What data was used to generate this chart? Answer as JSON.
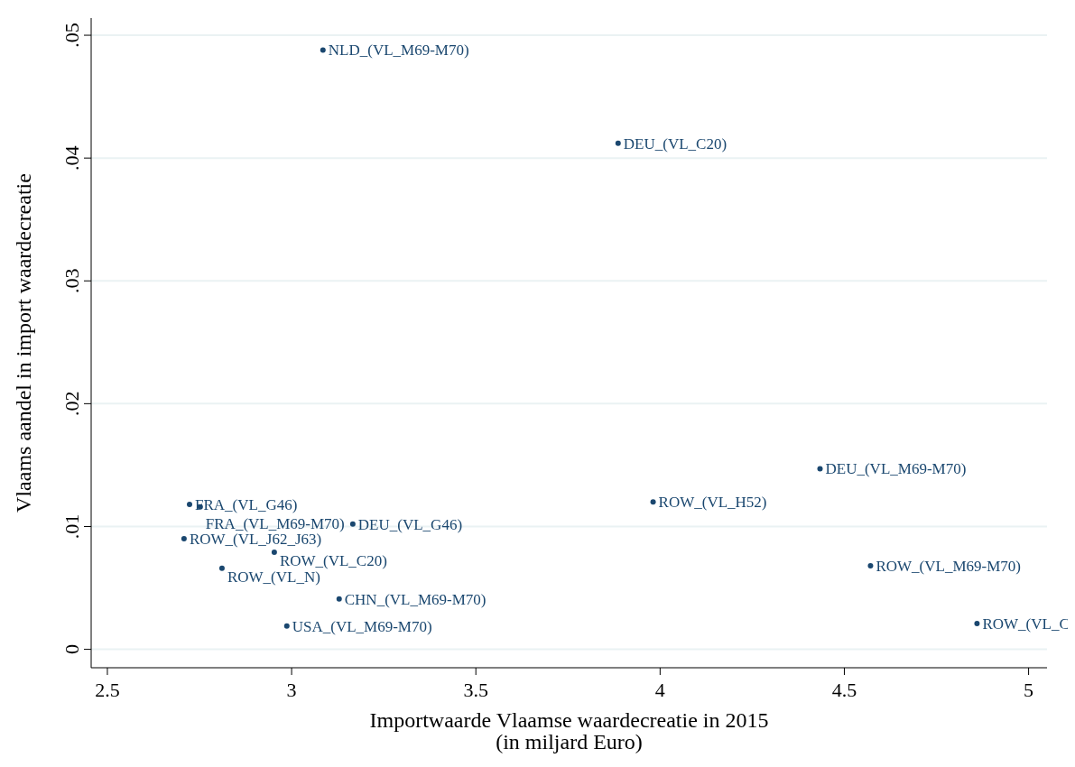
{
  "chart_data": {
    "type": "scatter",
    "xlabel": "Importwaarde Vlaamse waardecreatie in 2015\n(in miljard Euro)",
    "ylabel": "Vlaams aandel in import waardecreatie",
    "xlim": [
      2.456,
      5.05
    ],
    "ylim": [
      -0.0015,
      0.0514
    ],
    "xticks": [
      2.5,
      3,
      3.5,
      4,
      4.5,
      5
    ],
    "yticks": [
      {
        "value": 0,
        "label": "0"
      },
      {
        "value": 0.01,
        "label": ".01"
      },
      {
        "value": 0.02,
        "label": ".02"
      },
      {
        "value": 0.03,
        "label": ".03"
      },
      {
        "value": 0.04,
        "label": ".04"
      },
      {
        "value": 0.05,
        "label": ".05"
      }
    ],
    "grid": "y",
    "marker": "circle",
    "series": [
      {
        "color": "#1a476f",
        "x": [
          3.085,
          3.886,
          4.434,
          3.981,
          4.571,
          4.86,
          2.723,
          2.752,
          2.708,
          3.166,
          2.953,
          2.811,
          3.129,
          2.987
        ],
        "values": [
          0.0488,
          0.0412,
          0.0147,
          0.012,
          0.0068,
          0.0021,
          0.0118,
          0.0116,
          0.009,
          0.0102,
          0.0079,
          0.0066,
          0.0041,
          0.0019
        ]
      }
    ],
    "annotations": [
      {
        "text": "NLD_(VL_M69-M70)",
        "x": 3.085,
        "y": 0.0488
      },
      {
        "text": "DEU_(VL_C20)",
        "x": 3.886,
        "y": 0.0412
      },
      {
        "text": "DEU_(VL_M69-M70)",
        "x": 4.434,
        "y": 0.0147
      },
      {
        "text": "ROW_(VL_H52)",
        "x": 3.981,
        "y": 0.012
      },
      {
        "text": "ROW_(VL_M69-M70)",
        "x": 4.571,
        "y": 0.0068
      },
      {
        "text": "ROW_(VL_C",
        "x": 4.86,
        "y": 0.0021
      },
      {
        "text": "FRA_(VL_G46)",
        "x": 2.723,
        "y": 0.0118
      },
      {
        "text": "FRA_(VL_M69-M70)",
        "x": 2.752,
        "y": 0.0116
      },
      {
        "text": "ROW_(VL_J62_J63)",
        "x": 2.708,
        "y": 0.009
      },
      {
        "text": "DEU_(VL_G46)",
        "x": 3.166,
        "y": 0.0102
      },
      {
        "text": "ROW_(VL_C20)",
        "x": 2.953,
        "y": 0.0079
      },
      {
        "text": "ROW_(VL_N)",
        "x": 2.811,
        "y": 0.0066
      },
      {
        "text": "CHN_(VL_M69-M70)",
        "x": 3.129,
        "y": 0.0041
      },
      {
        "text": "USA_(VL_M69-M70)",
        "x": 2.987,
        "y": 0.0019
      }
    ]
  }
}
